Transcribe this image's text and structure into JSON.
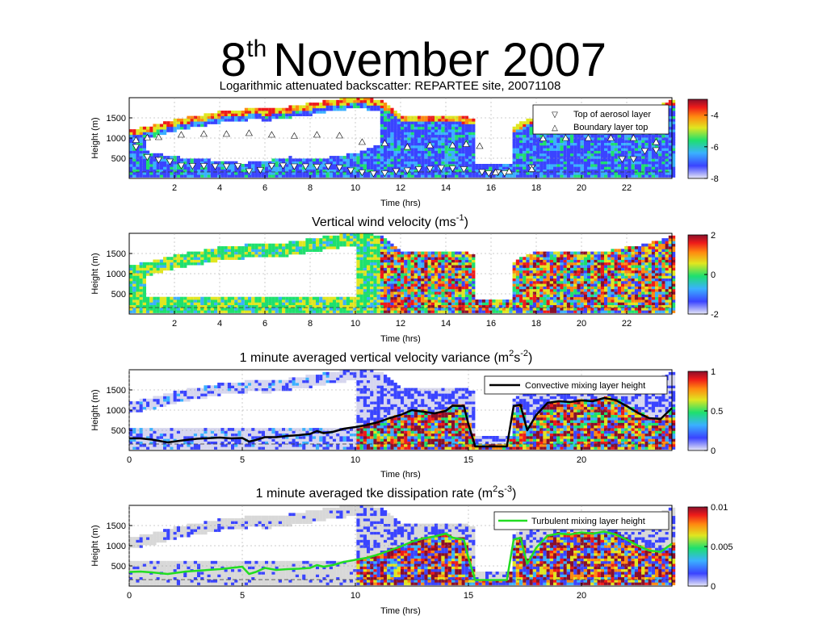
{
  "slide": {
    "title_day": "8",
    "title_suffix": "th",
    "title_rest": "November 2007"
  },
  "colors": {
    "palette": [
      "#d6d6ee",
      "#3a44ff",
      "#3ab0ff",
      "#1ee06e",
      "#e0e620",
      "#ff8a10",
      "#ee1a1a",
      "#8a0f2a"
    ],
    "missing": "#ffffff",
    "cloud": "#d8d8d8",
    "mixing_black": "#000000",
    "mixing_green": "#22dd22"
  },
  "chart_data": [
    {
      "type": "heatmap",
      "title": "Logarithmic attenuated backscatter: REPARTEE site, 20071108",
      "xlabel": "Time (hrs)",
      "ylabel": "Height (m)",
      "xlim": [
        0,
        24
      ],
      "ylim": [
        0,
        2000
      ],
      "xticks": [
        2,
        4,
        6,
        8,
        10,
        12,
        14,
        16,
        18,
        20,
        22
      ],
      "yticks": [
        500,
        1000,
        1500
      ],
      "colorbar": {
        "ticks": [
          -4,
          -6,
          -8
        ],
        "range": [
          -8,
          -3
        ]
      },
      "legend": {
        "position": "top-right",
        "entries": [
          {
            "marker": "▽",
            "label": "Top of aerosol layer"
          },
          {
            "marker": "△",
            "label": "Boundary layer top"
          }
        ]
      },
      "series": [
        {
          "name": "Top of aerosol layer",
          "x": [
            0.3,
            0.8,
            1.3,
            1.8,
            2.3,
            2.8,
            3.3,
            3.8,
            4.3,
            4.8,
            5.3,
            5.8,
            6.3,
            6.8,
            7.3,
            7.8,
            8.3,
            8.8,
            9.3,
            9.8,
            10.3,
            10.8,
            11.3,
            11.8,
            12.3,
            12.8,
            13.3,
            13.8,
            14.3,
            14.8,
            15.6,
            15.9,
            16.3,
            16.6,
            17.8,
            21.8,
            22.3,
            22.8,
            23.3
          ],
          "y": [
            780,
            530,
            460,
            420,
            320,
            310,
            310,
            300,
            300,
            310,
            180,
            210,
            310,
            320,
            300,
            300,
            290,
            300,
            270,
            200,
            150,
            120,
            130,
            180,
            200,
            230,
            240,
            260,
            250,
            230,
            160,
            130,
            150,
            130,
            270,
            480,
            480,
            680,
            700
          ]
        },
        {
          "name": "Boundary layer top",
          "x": [
            0.3,
            0.8,
            1.3,
            2.3,
            3.3,
            4.3,
            5.3,
            6.3,
            7.3,
            8.3,
            9.3,
            10.3,
            11.3,
            12.3,
            13.3,
            14.3,
            14.9,
            15.5,
            16.2,
            16.8,
            17.8,
            18.3,
            19.3,
            20.3,
            21.3,
            22.3,
            23.3
          ],
          "y": [
            950,
            1010,
            1020,
            1080,
            1100,
            1100,
            1120,
            1080,
            1050,
            1080,
            1060,
            900,
            870,
            780,
            820,
            820,
            850,
            800,
            150,
            170,
            230,
            990,
            1000,
            1000,
            1000,
            1000,
            900
          ]
        }
      ]
    },
    {
      "type": "heatmap",
      "title_main": "Vertical wind velocity (ms",
      "title_exp": "-1",
      "title_end": ")",
      "xlabel": "Time (hrs)",
      "ylabel": "Height (m)",
      "xlim": [
        0,
        24
      ],
      "ylim": [
        0,
        2000
      ],
      "xticks": [
        2,
        4,
        6,
        8,
        10,
        12,
        14,
        16,
        18,
        20,
        22
      ],
      "yticks": [
        500,
        1000,
        1500
      ],
      "colorbar": {
        "ticks": [
          2,
          0,
          -2
        ],
        "range": [
          -2,
          2
        ]
      }
    },
    {
      "type": "heatmap",
      "title_main": "1 minute averaged vertical velocity variance (m",
      "title_exp1": "2",
      "title_mid": "s",
      "title_exp2": "-2",
      "title_end": ")",
      "xlabel": "Time (hrs)",
      "ylabel": "Height (m)",
      "xlim": [
        0,
        24
      ],
      "ylim": [
        0,
        2000
      ],
      "xticks": [
        0,
        5,
        10,
        15,
        20
      ],
      "yticks": [
        500,
        1000,
        1500
      ],
      "colorbar": {
        "ticks": [
          1,
          0.5,
          0
        ],
        "range": [
          0,
          1
        ]
      },
      "legend": {
        "position": "top-right",
        "entries": [
          {
            "label": "Convective mixing layer height"
          }
        ]
      },
      "series": [
        {
          "name": "Convective mixing layer height",
          "x": [
            0,
            0.5,
            1,
            1.7,
            2.5,
            3,
            4,
            4.5,
            5,
            5.3,
            5.6,
            6,
            6.5,
            7,
            7.5,
            8,
            8.3,
            8.6,
            9,
            9.5,
            10,
            10.5,
            11,
            11.5,
            12,
            12.5,
            13,
            13.5,
            14,
            14.3,
            14.8,
            15,
            15.3,
            16,
            16.7,
            17,
            17.3,
            17.6,
            18,
            18.5,
            19,
            19.5,
            20,
            20.5,
            21,
            21.5,
            22,
            22.5,
            23,
            23.5,
            24
          ],
          "y": [
            300,
            300,
            270,
            200,
            260,
            290,
            320,
            300,
            310,
            220,
            260,
            330,
            330,
            360,
            380,
            410,
            480,
            430,
            460,
            540,
            580,
            630,
            700,
            800,
            880,
            1000,
            960,
            920,
            980,
            1110,
            1100,
            650,
            100,
            100,
            100,
            1100,
            1130,
            500,
            880,
            1180,
            1220,
            1200,
            1240,
            1220,
            1300,
            1250,
            1100,
            930,
            800,
            780,
            1050
          ]
        }
      ]
    },
    {
      "type": "heatmap",
      "title_main": "1 minute averaged tke dissipation rate (m",
      "title_exp1": "2",
      "title_mid": "s",
      "title_exp2": "-3",
      "title_end": ")",
      "xlabel": "Time (hrs)",
      "ylabel": "Height (m)",
      "xlim": [
        0,
        24
      ],
      "ylim": [
        0,
        2000
      ],
      "xticks": [
        0,
        5,
        10,
        15,
        20
      ],
      "yticks": [
        500,
        1000,
        1500
      ],
      "colorbar": {
        "ticks": [
          0.01,
          0.005,
          0
        ],
        "range": [
          0,
          0.01
        ]
      },
      "legend": {
        "position": "top-right",
        "entries": [
          {
            "label": "Turbulent mixing layer height"
          }
        ]
      },
      "series": [
        {
          "name": "Turbulent mixing layer height",
          "x": [
            0,
            0.5,
            1,
            1.7,
            2.5,
            3,
            4,
            4.5,
            5,
            5.3,
            5.6,
            6,
            6.5,
            7,
            7.5,
            8,
            8.3,
            8.6,
            9,
            9.5,
            10,
            10.5,
            11,
            11.5,
            12,
            12.5,
            13,
            13.5,
            14,
            14.3,
            14.8,
            15,
            15.3,
            16,
            16.7,
            17,
            17.3,
            17.6,
            18,
            18.5,
            19,
            19.5,
            20,
            20.5,
            21,
            21.5,
            22,
            22.5,
            23,
            23.5,
            24
          ],
          "y": [
            350,
            360,
            340,
            300,
            360,
            380,
            420,
            450,
            480,
            300,
            350,
            450,
            400,
            420,
            430,
            450,
            520,
            480,
            520,
            600,
            650,
            700,
            780,
            880,
            980,
            1100,
            1180,
            1230,
            1300,
            1200,
            1150,
            700,
            150,
            150,
            150,
            1150,
            1200,
            550,
            950,
            1250,
            1300,
            1280,
            1330,
            1300,
            1350,
            1280,
            1150,
            1000,
            880,
            850,
            1050
          ]
        }
      ]
    }
  ]
}
